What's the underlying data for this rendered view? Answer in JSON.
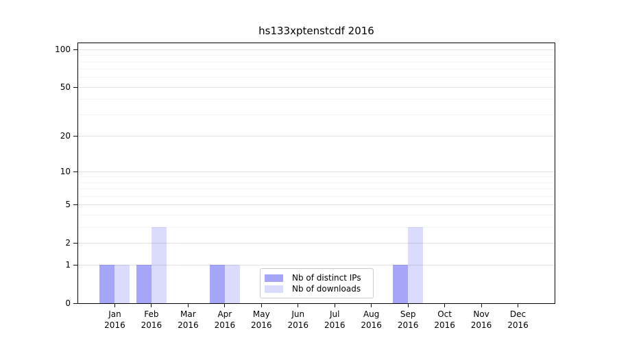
{
  "title": "hs133xptenstcdf 2016",
  "colors": {
    "bar_base": "#0000ee",
    "distinct_ips_effective": "#a6a6f9",
    "downloads_effective": "#dbdbfd",
    "grid_major": "#e4e4e4",
    "grid_minor": "#f3f3f3",
    "axis": "#000000",
    "legend_border": "#cccccc"
  },
  "legend": {
    "items": [
      {
        "label": "Nb of distinct IPs"
      },
      {
        "label": "Nb of downloads"
      }
    ]
  },
  "chart_data": {
    "type": "bar",
    "title": "hs133xptenstcdf 2016",
    "categories": [
      "Jan 2016",
      "Feb 2016",
      "Mar 2016",
      "Apr 2016",
      "May 2016",
      "Jun 2016",
      "Jul 2016",
      "Aug 2016",
      "Sep 2016",
      "Oct 2016",
      "Nov 2016",
      "Dec 2016"
    ],
    "series": [
      {
        "name": "Nb of distinct IPs",
        "color": "#0000ee",
        "alpha": 0.35,
        "values": [
          1,
          1,
          0,
          1,
          0,
          0,
          0,
          0,
          1,
          0,
          0,
          0
        ]
      },
      {
        "name": "Nb of downloads",
        "color": "#0000ee",
        "alpha": 0.14,
        "values": [
          1,
          3,
          0,
          1,
          0,
          0,
          0,
          0,
          3,
          0,
          0,
          0
        ]
      }
    ],
    "xlabel": "",
    "ylabel": "",
    "grid": true,
    "legend_position": "lower center",
    "y_axis": {
      "scale": "log10(1+x)",
      "ticks": [
        0,
        1,
        2,
        5,
        10,
        20,
        50,
        100
      ],
      "minor_ticks": [
        3,
        4,
        6,
        7,
        8,
        9,
        30,
        40,
        60,
        70,
        80,
        90
      ],
      "ylim": [
        0,
        112
      ]
    }
  }
}
